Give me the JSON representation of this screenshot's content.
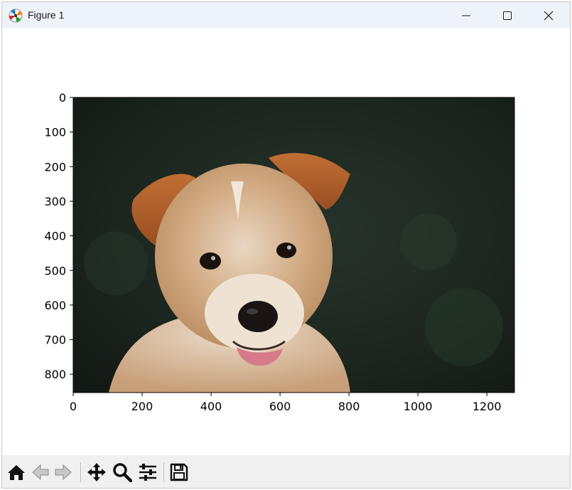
{
  "window": {
    "title": "Figure 1",
    "controls": [
      "minimize",
      "maximize",
      "close"
    ]
  },
  "figure": {
    "content": "imshow",
    "image_subject_icon": "puppy-photo",
    "x_axis": {
      "ticks": [
        "0",
        "200",
        "400",
        "600",
        "800",
        "1000",
        "1200"
      ],
      "tick_values": [
        0,
        200,
        400,
        600,
        800,
        1000,
        1200
      ],
      "range": [
        0,
        1280
      ]
    },
    "y_axis": {
      "ticks": [
        "0",
        "100",
        "200",
        "300",
        "400",
        "500",
        "600",
        "700",
        "800"
      ],
      "tick_values": [
        0,
        100,
        200,
        300,
        400,
        500,
        600,
        700,
        800
      ],
      "range": [
        0,
        853
      ],
      "inverted": true
    }
  },
  "toolbar": {
    "tools": [
      {
        "name": "home-icon",
        "enabled": true
      },
      {
        "name": "back-arrow-icon",
        "enabled": false
      },
      {
        "name": "forward-arrow-icon",
        "enabled": false
      },
      {
        "name": "pan-icon",
        "enabled": true
      },
      {
        "name": "zoom-icon",
        "enabled": true
      },
      {
        "name": "configure-subplots-icon",
        "enabled": true
      },
      {
        "name": "save-icon",
        "enabled": true
      }
    ]
  },
  "colors": {
    "titlebar": "#eef2f9",
    "toolbar": "#f0f0f0",
    "background_dark_green": "#1d2a22",
    "fur": "#c99a6e",
    "ears": "#b8652c"
  }
}
